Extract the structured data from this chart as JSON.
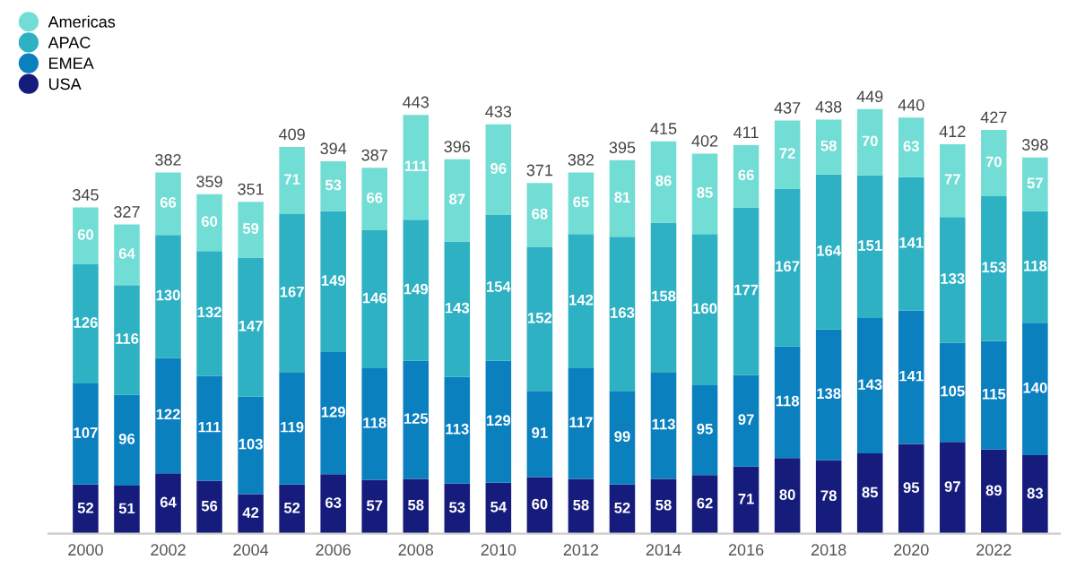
{
  "chart_data": {
    "type": "bar",
    "stacked": true,
    "data_labels": true,
    "legend": "top left",
    "grid": false,
    "categories": [
      "2000",
      null,
      "2002",
      null,
      "2004",
      null,
      "2006",
      null,
      "2008",
      null,
      "2010",
      null,
      "2012",
      null,
      "2014",
      null,
      "2016",
      null,
      "2018",
      null,
      "2020",
      null,
      "2022",
      null
    ],
    "series": [
      {
        "name": "USA",
        "color": "#161c7c",
        "values": [
          52,
          51,
          64,
          56,
          42,
          52,
          63,
          57,
          58,
          53,
          54,
          60,
          58,
          52,
          58,
          62,
          71,
          80,
          78,
          85,
          95,
          97,
          89,
          83
        ]
      },
      {
        "name": "EMEA",
        "color": "#0a80bf",
        "values": [
          107,
          96,
          122,
          111,
          103,
          119,
          129,
          118,
          125,
          113,
          129,
          91,
          117,
          99,
          113,
          95,
          97,
          118,
          138,
          143,
          141,
          105,
          115,
          140
        ]
      },
      {
        "name": "APAC",
        "color": "#2db1c3",
        "values": [
          126,
          116,
          130,
          132,
          147,
          167,
          149,
          146,
          149,
          143,
          154,
          152,
          142,
          163,
          158,
          160,
          177,
          167,
          164,
          151,
          141,
          133,
          153,
          118
        ]
      },
      {
        "name": "Americas",
        "color": "#72ddd5",
        "values": [
          60,
          64,
          66,
          60,
          59,
          71,
          53,
          66,
          111,
          87,
          96,
          68,
          65,
          81,
          86,
          85,
          66,
          72,
          58,
          70,
          63,
          77,
          70,
          57
        ]
      }
    ],
    "totals": [
      "345",
      "327",
      "382",
      "359",
      "351",
      "409",
      "394",
      "387",
      "443",
      "396",
      "433",
      "371",
      "382",
      "395",
      "415",
      "402",
      "411",
      "437",
      "438",
      "449",
      "440",
      "412",
      "427",
      "398"
    ]
  }
}
